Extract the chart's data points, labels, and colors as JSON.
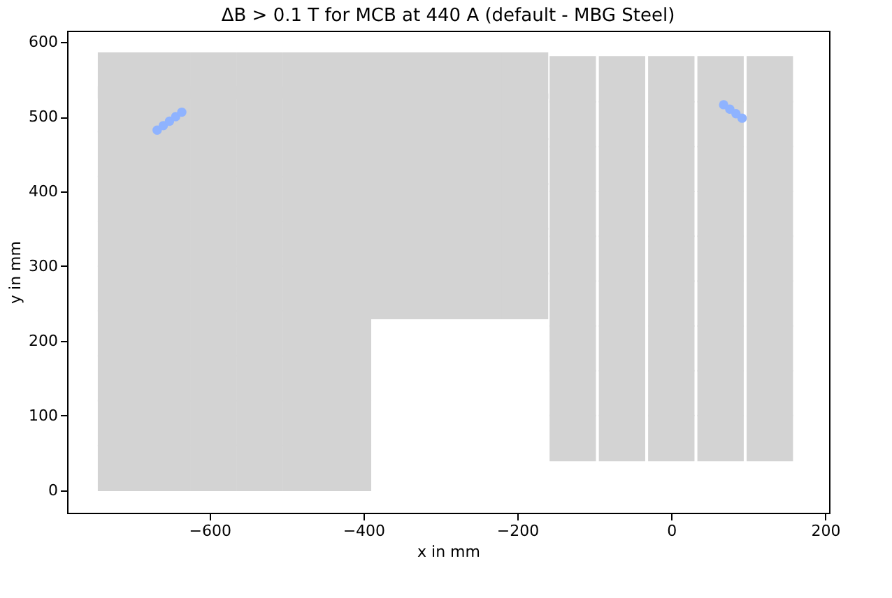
{
  "chart_data": {
    "type": "scatter",
    "title": "ΔB > 0.1 T for MCB at 440 A (default - MBG Steel)",
    "xlabel": "x in mm",
    "ylabel": "y in mm",
    "xlim": [
      -785,
      205
    ],
    "xticks": [
      -600,
      -400,
      -200,
      0,
      200
    ],
    "ylim": [
      -30,
      615
    ],
    "yticks": [
      0,
      100,
      200,
      300,
      400,
      500,
      600
    ],
    "grid": false,
    "series": [
      {
        "color": "#d3d3d3",
        "marker": "square",
        "x": [
          -715,
          -715,
          -715,
          -715,
          -715,
          -715,
          -715,
          -715,
          -715,
          -715,
          -655,
          -655,
          -655,
          -655,
          -655,
          -655,
          -655,
          -655,
          -655,
          -655,
          -595,
          -595,
          -595,
          -595,
          -595,
          -595,
          -595,
          -595,
          -595,
          -595,
          -535,
          -535,
          -535,
          -535,
          -535,
          -535,
          -535,
          -535,
          -535,
          -535,
          -475,
          -475,
          -475,
          -475,
          -475,
          -475,
          -475,
          -475,
          -475,
          -475,
          -420,
          -420,
          -420,
          -420,
          -420,
          -420,
          -420,
          -420,
          -420,
          -420
        ],
        "values": [
          30,
          90,
          150,
          210,
          270,
          330,
          390,
          450,
          510,
          555,
          30,
          90,
          150,
          210,
          270,
          330,
          390,
          450,
          510,
          555,
          30,
          90,
          150,
          210,
          270,
          330,
          390,
          450,
          510,
          555,
          30,
          90,
          150,
          210,
          270,
          330,
          390,
          450,
          510,
          555,
          30,
          90,
          150,
          210,
          270,
          330,
          390,
          450,
          510,
          555,
          30,
          90,
          150,
          210,
          270,
          330,
          390,
          450,
          510,
          555
        ]
      },
      {
        "color": "#d3d3d3",
        "marker": "square",
        "x": [
          -360,
          -360,
          -360,
          -360,
          -360,
          -360,
          -300,
          -300,
          -300,
          -300,
          -300,
          -300,
          -240,
          -240,
          -240,
          -240,
          -240,
          -240,
          -190,
          -190,
          -190,
          -190,
          -190,
          -190
        ],
        "values": [
          260,
          320,
          380,
          440,
          500,
          555,
          260,
          320,
          380,
          440,
          500,
          555,
          260,
          320,
          380,
          440,
          500,
          555,
          260,
          320,
          380,
          440,
          500,
          555
        ]
      },
      {
        "color": "#d3d3d3",
        "marker": "square",
        "x": [
          -128,
          -128,
          -128,
          -128,
          -128,
          -128,
          -128,
          -128,
          -128,
          -64,
          -64,
          -64,
          -64,
          -64,
          -64,
          -64,
          -64,
          -64,
          0,
          0,
          0,
          0,
          0,
          0,
          0,
          0,
          0,
          64,
          64,
          64,
          64,
          64,
          64,
          64,
          64,
          64,
          128,
          128,
          128,
          128,
          128,
          128,
          128,
          128,
          128
        ],
        "values": [
          70,
          130,
          190,
          250,
          310,
          370,
          430,
          490,
          550,
          70,
          130,
          190,
          250,
          310,
          370,
          430,
          490,
          550,
          70,
          130,
          190,
          250,
          310,
          370,
          430,
          490,
          550,
          70,
          130,
          190,
          250,
          310,
          370,
          430,
          490,
          550,
          70,
          130,
          190,
          250,
          310,
          370,
          430,
          490,
          550
        ]
      },
      {
        "color": "#8fb3ff",
        "marker": "circle",
        "x": [
          -668,
          -660,
          -652,
          -644,
          -636
        ],
        "values": [
          482,
          488,
          494,
          500,
          506
        ]
      },
      {
        "color": "#8fb3ff",
        "marker": "circle",
        "x": [
          68,
          76,
          84,
          92
        ],
        "values": [
          516,
          510,
          504,
          498
        ]
      }
    ]
  }
}
